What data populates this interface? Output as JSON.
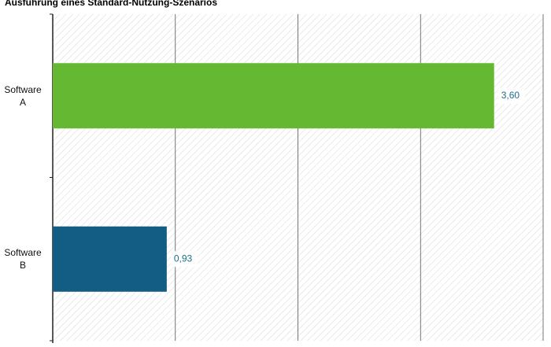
{
  "chart_data": {
    "type": "bar",
    "orientation": "horizontal",
    "title": "Ausführung eines Standard-Nutzung-Szenarios",
    "categories": [
      "Software A",
      "Software B"
    ],
    "values": [
      3.6,
      0.93
    ],
    "value_labels": [
      "3,60",
      "0,93"
    ],
    "colors": [
      "#64b832",
      "#135c84"
    ],
    "xlim": [
      0,
      4
    ],
    "xticks": [
      0,
      1,
      2,
      3,
      4
    ],
    "grid": true
  }
}
